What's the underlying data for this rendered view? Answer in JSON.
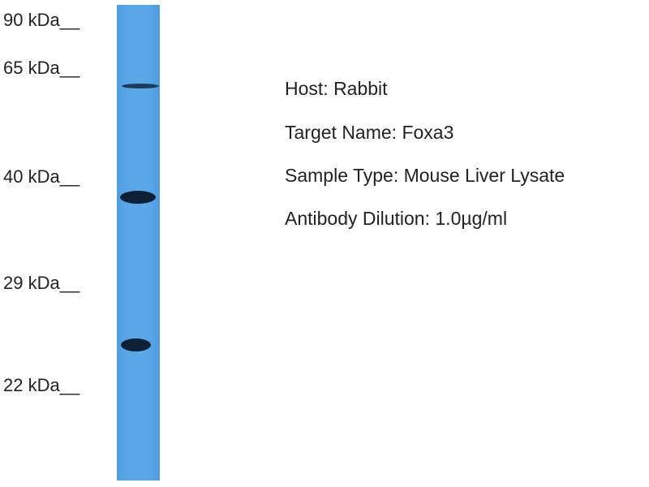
{
  "markers": [
    "90 kDa__",
    "65 kDa__",
    "40 kDa__",
    "29 kDa__",
    "22 kDa__"
  ],
  "info": [
    "Host: Rabbit",
    "Target Name: Foxa3",
    "Sample Type: Mouse Liver Lysate",
    "Antibody Dilution: 1.0µg/ml"
  ],
  "colors": {
    "lane": "#5aa7e8",
    "band": "#0d2036"
  }
}
